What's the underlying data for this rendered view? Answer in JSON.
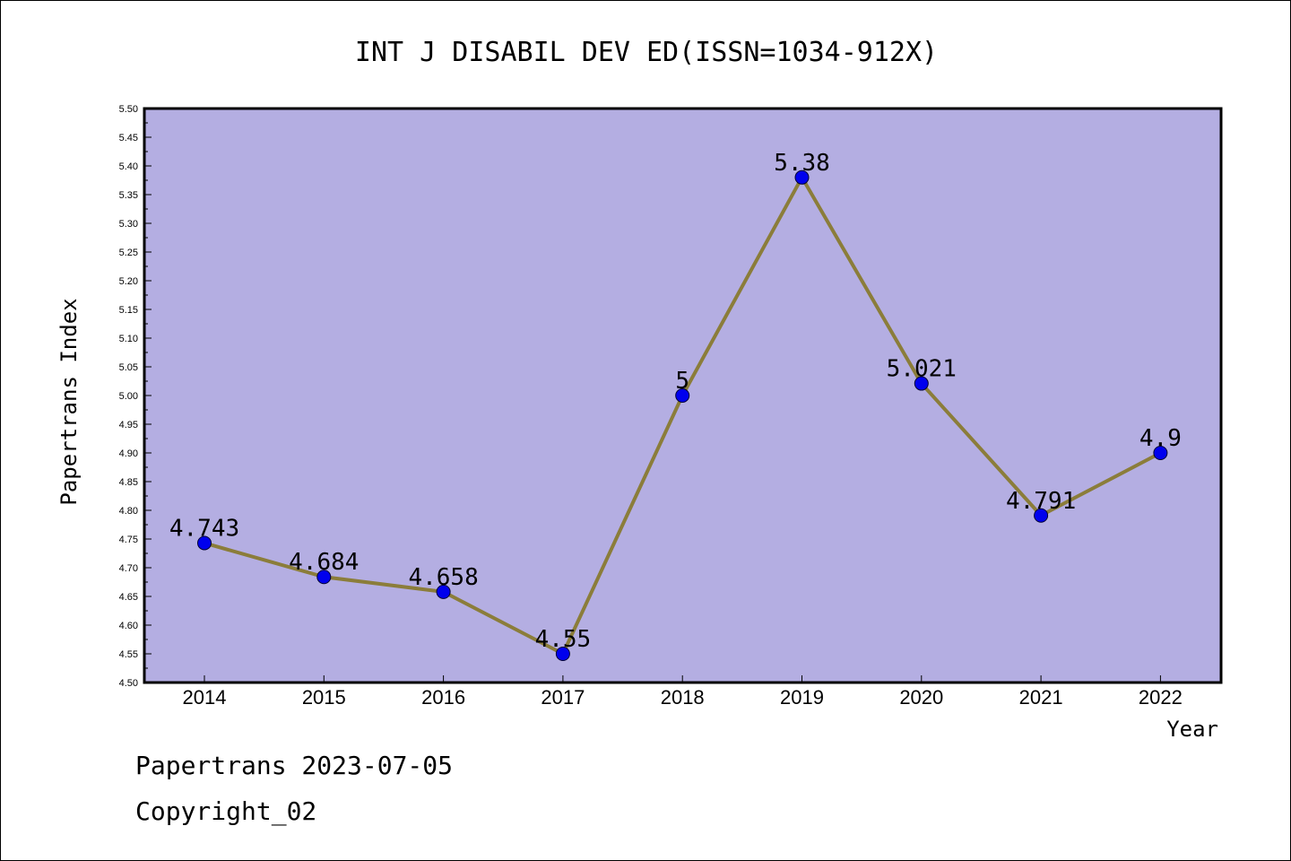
{
  "chart_data": {
    "type": "line",
    "title": "INT J DISABIL DEV ED(ISSN=1034-912X)",
    "xlabel": "Year",
    "ylabel": "Papertrans Index",
    "categories": [
      "2014",
      "2015",
      "2016",
      "2017",
      "2018",
      "2019",
      "2020",
      "2021",
      "2022"
    ],
    "series": [
      {
        "values": [
          4.743,
          4.684,
          4.658,
          4.55,
          5,
          5.38,
          5.021,
          4.791,
          4.9
        ],
        "labels": [
          "4.743",
          "4.684",
          "4.658",
          "4.55",
          "5",
          "5.38",
          "5.021",
          "4.791",
          "4.9"
        ]
      }
    ],
    "ylim": [
      4.5,
      5.5
    ],
    "yticks": [
      "4.50",
      "4.55",
      "4.60",
      "4.65",
      "4.70",
      "4.75",
      "4.80",
      "4.85",
      "4.90",
      "4.95",
      "5.00",
      "5.05",
      "5.10",
      "5.15",
      "5.20",
      "5.25",
      "5.30",
      "5.35",
      "5.40",
      "5.45",
      "5.50"
    ],
    "grid": false,
    "colors": {
      "plot_background": "#b4aee2",
      "line": "#8b7d3a",
      "marker": "#0000ee"
    }
  },
  "footer": {
    "line1": "Papertrans 2023-07-05",
    "line2": "Copyright_02"
  }
}
